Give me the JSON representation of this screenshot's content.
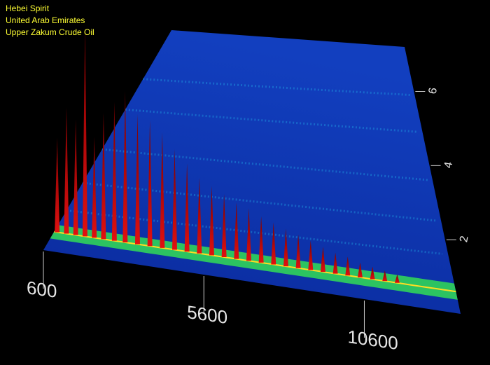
{
  "captions": {
    "line1": "Hebei Spirit",
    "line2": "United Arab Emirates",
    "line3": "Upper Zakum Crude Oil"
  },
  "colors": {
    "background": "#000000",
    "caption": "#ffff33",
    "surface": "#0b2fa6",
    "peak": "#b30000",
    "band_green": "#33dd55",
    "band_cyan": "#22bbee",
    "axis_text": "#e6e6e6"
  },
  "chart_data": {
    "type": "heatmap",
    "x_ticks": [
      600,
      5600,
      10600
    ],
    "y_ticks": [
      2,
      4,
      6
    ],
    "x_tick_labels": [
      "600",
      "5600",
      "10600"
    ],
    "y_tick_labels": [
      "2",
      "4",
      "6"
    ],
    "xlim": [
      600,
      13600
    ],
    "ylim": [
      0,
      7.2
    ],
    "main_band": {
      "y": 0.6
    },
    "secondary_bands": [
      {
        "y": 1.3
      },
      {
        "y": 2.2
      },
      {
        "y": 3.3
      },
      {
        "y": 4.6
      },
      {
        "y": 5.6
      }
    ],
    "peaks": [
      {
        "x": 700,
        "y": 0.6,
        "height": 0.45
      },
      {
        "x": 1000,
        "y": 0.6,
        "height": 0.6
      },
      {
        "x": 1300,
        "y": 0.6,
        "height": 0.55
      },
      {
        "x": 1600,
        "y": 0.6,
        "height": 1.0
      },
      {
        "x": 1900,
        "y": 0.6,
        "height": 0.48
      },
      {
        "x": 2200,
        "y": 0.6,
        "height": 0.6
      },
      {
        "x": 2550,
        "y": 0.6,
        "height": 0.66
      },
      {
        "x": 2900,
        "y": 0.6,
        "height": 0.72
      },
      {
        "x": 3300,
        "y": 0.6,
        "height": 0.62
      },
      {
        "x": 3700,
        "y": 0.6,
        "height": 0.6
      },
      {
        "x": 4100,
        "y": 0.6,
        "height": 0.55
      },
      {
        "x": 4500,
        "y": 0.6,
        "height": 0.48
      },
      {
        "x": 4900,
        "y": 0.6,
        "height": 0.42
      },
      {
        "x": 5300,
        "y": 0.6,
        "height": 0.36
      },
      {
        "x": 5700,
        "y": 0.6,
        "height": 0.33
      },
      {
        "x": 6100,
        "y": 0.6,
        "height": 0.3
      },
      {
        "x": 6500,
        "y": 0.6,
        "height": 0.27
      },
      {
        "x": 6900,
        "y": 0.6,
        "height": 0.25
      },
      {
        "x": 7300,
        "y": 0.6,
        "height": 0.22
      },
      {
        "x": 7700,
        "y": 0.6,
        "height": 0.2
      },
      {
        "x": 8100,
        "y": 0.6,
        "height": 0.18
      },
      {
        "x": 8500,
        "y": 0.6,
        "height": 0.16
      },
      {
        "x": 8900,
        "y": 0.6,
        "height": 0.14
      },
      {
        "x": 9300,
        "y": 0.6,
        "height": 0.12
      },
      {
        "x": 9700,
        "y": 0.6,
        "height": 0.1
      },
      {
        "x": 10100,
        "y": 0.6,
        "height": 0.09
      },
      {
        "x": 10500,
        "y": 0.6,
        "height": 0.07
      },
      {
        "x": 10900,
        "y": 0.6,
        "height": 0.06
      },
      {
        "x": 11300,
        "y": 0.6,
        "height": 0.05
      },
      {
        "x": 11700,
        "y": 0.6,
        "height": 0.04
      }
    ],
    "grid": false
  }
}
